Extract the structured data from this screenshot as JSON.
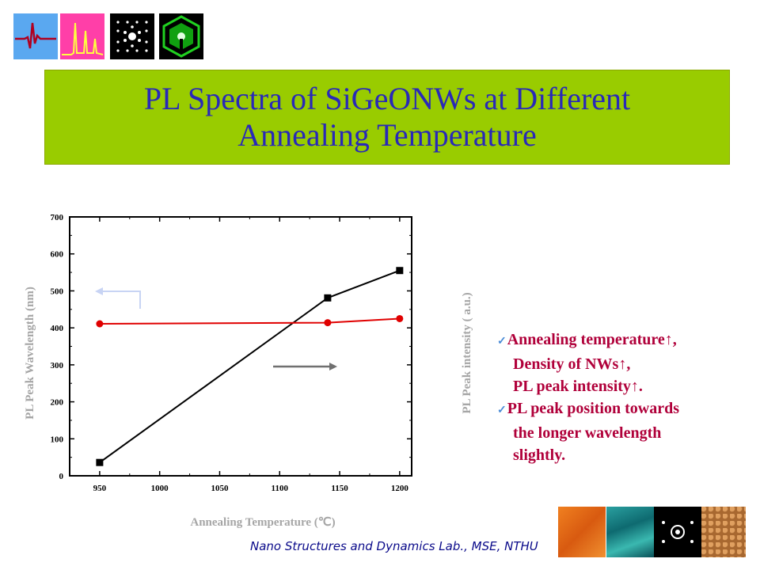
{
  "slide": {
    "title_line1": "PL Spectra of SiGeONWs at Different",
    "title_line2": "Annealing Temperature",
    "footer": "Nano Structures and Dynamics Lab., MSE, NTHU",
    "bullets": [
      {
        "check": true,
        "text": "Annealing temperature↑,"
      },
      {
        "check": false,
        "text": "Density of NWs↑,"
      },
      {
        "check": false,
        "text": "PL peak intensity↑."
      },
      {
        "check": true,
        "text": "PL peak position towards"
      },
      {
        "check": false,
        "text": "the longer wavelength"
      },
      {
        "check": false,
        "text": "slightly."
      }
    ],
    "colors": {
      "title_bg": "#99cc00",
      "title_text": "#2929b8",
      "bullet_text": "#b0003a"
    }
  },
  "chart_data": {
    "type": "line",
    "xlabel": "Annealing Temperature (℃)",
    "ylabel": "PL Peak Wavelength (nm)",
    "ylabel_right": "PL Peak intensity ( a.u.)",
    "xlim": [
      925,
      1210
    ],
    "ylim": [
      0,
      700
    ],
    "x_ticks": [
      950,
      1000,
      1050,
      1100,
      1150,
      1200
    ],
    "y_ticks": [
      0,
      100,
      200,
      300,
      400,
      500,
      600,
      700
    ],
    "series": [
      {
        "axis": "left",
        "color": "#000000",
        "marker": "square",
        "x": [
          950,
          1140,
          1200
        ],
        "y": [
          36,
          481,
          555
        ]
      },
      {
        "axis": "right",
        "color": "#e00000",
        "marker": "circle",
        "x": [
          950,
          1140,
          1200
        ],
        "y": [
          411,
          414,
          425
        ]
      }
    ],
    "arrows": [
      {
        "direction": "left",
        "points_to": "left axis",
        "color": "#c8d4f4"
      },
      {
        "direction": "right",
        "points_to": "right axis",
        "color": "#707070"
      }
    ]
  }
}
